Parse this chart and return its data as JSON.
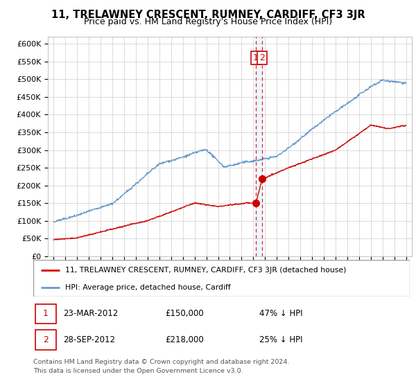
{
  "title": "11, TRELAWNEY CRESCENT, RUMNEY, CARDIFF, CF3 3JR",
  "subtitle": "Price paid vs. HM Land Registry's House Price Index (HPI)",
  "legend_line1": "11, TRELAWNEY CRESCENT, RUMNEY, CARDIFF, CF3 3JR (detached house)",
  "legend_line2": "HPI: Average price, detached house, Cardiff",
  "transaction1_date": "23-MAR-2012",
  "transaction1_price": "£150,000",
  "transaction1_hpi": "47% ↓ HPI",
  "transaction2_date": "28-SEP-2012",
  "transaction2_price": "£218,000",
  "transaction2_hpi": "25% ↓ HPI",
  "footnote": "Contains HM Land Registry data © Crown copyright and database right 2024.\nThis data is licensed under the Open Government Licence v3.0.",
  "hpi_color": "#6699cc",
  "price_color": "#cc0000",
  "dashed_line_color": "#cc0000",
  "annotation_box_color": "#cc0000",
  "ylim_min": 0,
  "ylim_max": 620000,
  "yticks": [
    0,
    50000,
    100000,
    150000,
    200000,
    250000,
    300000,
    350000,
    400000,
    450000,
    500000,
    550000,
    600000
  ],
  "ytick_labels": [
    "£0",
    "£50K",
    "£100K",
    "£150K",
    "£200K",
    "£250K",
    "£300K",
    "£350K",
    "£400K",
    "£450K",
    "£500K",
    "£550K",
    "£600K"
  ],
  "grid_color": "#cccccc",
  "background_color": "#ffffff",
  "transaction1_x": 2012.22,
  "transaction1_y": 150000,
  "transaction2_x": 2012.75,
  "transaction2_y": 218000,
  "xlim_min": 1994.5,
  "xlim_max": 2025.5
}
